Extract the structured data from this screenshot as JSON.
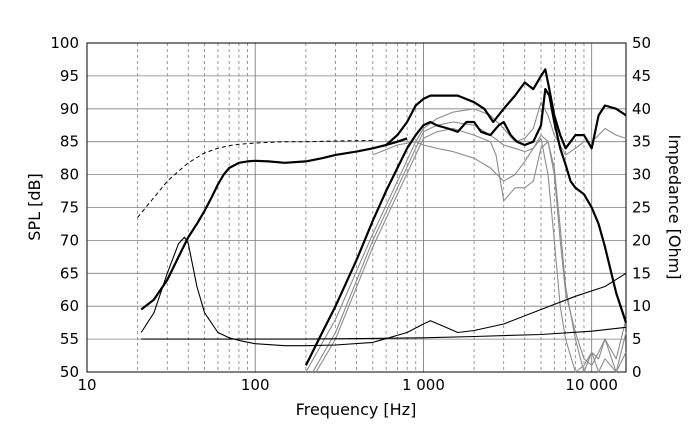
{
  "chart_data": {
    "type": "line",
    "title": "",
    "xlabel": "Frequency [Hz]",
    "ylabel": "SPL [dB]",
    "y2label": "Impedance [Ohm]",
    "xscale": "log",
    "xlim": [
      10,
      16000
    ],
    "ylim": [
      50,
      100
    ],
    "y2lim": [
      0,
      50
    ],
    "grid": true,
    "x_tick_labels": [
      "10",
      "100",
      "1 000",
      "10 000"
    ],
    "x_tick_values": [
      10,
      100,
      1000,
      10000
    ],
    "y_tick_labels": [
      "50",
      "55",
      "60",
      "65",
      "70",
      "75",
      "80",
      "85",
      "90",
      "95",
      "100"
    ],
    "y2_tick_labels": [
      "0",
      "5",
      "10",
      "15",
      "20",
      "25",
      "30",
      "35",
      "40",
      "45",
      "50"
    ],
    "colors": {
      "primary": "#000000",
      "secondary": "#8c8c8c",
      "grid": "#808080"
    },
    "series": [
      {
        "axis": "left",
        "style": "thick-black",
        "x": [
          21,
          25,
          30,
          35,
          40,
          45,
          50,
          55,
          60,
          65,
          70,
          80,
          90,
          100,
          120,
          150,
          200,
          250,
          300,
          400,
          500,
          600,
          700,
          800
        ],
        "y": [
          59.5,
          61,
          64,
          67.5,
          70.5,
          72.5,
          74.5,
          76.5,
          78.5,
          80,
          81,
          81.8,
          82,
          82.1,
          82,
          81.8,
          82,
          82.5,
          83,
          83.5,
          84,
          84.5,
          85,
          85.5
        ]
      },
      {
        "axis": "left",
        "style": "dashed-black",
        "x": [
          20,
          25,
          30,
          35,
          40,
          50,
          60,
          70,
          80,
          100,
          150,
          200,
          300,
          500
        ],
        "y": [
          73.5,
          76.5,
          79,
          80.5,
          81.8,
          83.3,
          84,
          84.4,
          84.6,
          84.8,
          85,
          85,
          85.1,
          85.2
        ]
      },
      {
        "axis": "right",
        "style": "thin-black",
        "x": [
          21,
          25,
          30,
          35,
          38,
          40,
          45,
          50,
          60,
          70,
          80,
          100,
          150,
          200,
          300,
          500,
          800,
          1000,
          1100,
          1300,
          1600,
          2000,
          3000,
          5000,
          8000,
          12000,
          16000
        ],
        "y": [
          6,
          9,
          15,
          19.5,
          20.5,
          19.5,
          13,
          9,
          6,
          5.2,
          4.8,
          4.3,
          4,
          4,
          4.1,
          4.5,
          6,
          7.3,
          7.8,
          7,
          6,
          6.3,
          7.3,
          9.5,
          11.5,
          13,
          15
        ]
      },
      {
        "axis": "right",
        "style": "thin-black",
        "x": [
          21,
          50,
          100,
          200,
          500,
          1000,
          2000,
          5000,
          10000,
          16000
        ],
        "y": [
          5,
          5,
          5,
          5,
          5.1,
          5.2,
          5.4,
          5.7,
          6.2,
          6.8
        ]
      },
      {
        "axis": "left",
        "style": "thick-black",
        "x": [
          200,
          250,
          300,
          400,
          500,
          600,
          700,
          800,
          900,
          1000,
          1100,
          1200,
          1400,
          1600,
          1800,
          2000,
          2200,
          2500,
          2800,
          3000,
          3300,
          3600,
          4000,
          4500,
          5000,
          5300,
          5600,
          6000,
          6500,
          7000,
          7500,
          8000,
          9000,
          10000,
          11000,
          12000,
          14000,
          16000
        ],
        "y": [
          51,
          56,
          60,
          67,
          73,
          77.5,
          81,
          84,
          86,
          87.5,
          88,
          87.5,
          87,
          86.5,
          88,
          88,
          86.5,
          86,
          87.5,
          88,
          86,
          85,
          84.5,
          85,
          87.5,
          93,
          92,
          88,
          84,
          81.5,
          79,
          78,
          77,
          75,
          72.5,
          69,
          62,
          57.5
        ]
      },
      {
        "axis": "left",
        "style": "thick-black",
        "x": [
          600,
          700,
          800,
          900,
          1000,
          1100,
          1300,
          1600,
          2000,
          2300,
          2600,
          3000,
          3500,
          4000,
          4500,
          5000,
          5300,
          5600,
          6000,
          6500,
          7000,
          7500,
          8000,
          9000,
          10000,
          11000,
          12000,
          14000,
          16000
        ],
        "y": [
          84.5,
          86,
          88,
          90.5,
          91.5,
          92,
          92,
          92,
          91,
          90,
          88,
          90,
          92,
          94,
          93,
          95,
          96,
          93,
          89,
          86,
          84,
          85,
          86,
          86,
          84,
          89,
          90.5,
          90,
          89
        ]
      },
      {
        "axis": "left",
        "style": "thin-gray",
        "x": [
          200,
          300,
          500,
          700,
          900,
          1000,
          1200,
          1500,
          2000,
          2500,
          3000,
          3500,
          4000,
          4500,
          5000,
          5500,
          6000,
          7000,
          8000,
          9000,
          10000,
          11000,
          12000,
          14000,
          16000
        ],
        "y": [
          50,
          58,
          71,
          79,
          85,
          87,
          88.5,
          89.5,
          90,
          89,
          87,
          85,
          85.5,
          87,
          91,
          89,
          86,
          83,
          84,
          85,
          85,
          86,
          87,
          86,
          85.5
        ]
      },
      {
        "axis": "left",
        "style": "thin-gray",
        "x": [
          220,
          300,
          500,
          700,
          900,
          1000,
          1200,
          1500,
          2000,
          2500,
          3000,
          3500,
          4000,
          4500,
          5000,
          5500,
          6000,
          6500,
          7000,
          8000,
          9000,
          10000,
          11000,
          12000,
          14000,
          16000
        ],
        "y": [
          50,
          56,
          70,
          78,
          84,
          86.5,
          87.5,
          88,
          87.5,
          86,
          84.5,
          84,
          83.5,
          84,
          86,
          85,
          80,
          70,
          62,
          56,
          52,
          51,
          53,
          55,
          52,
          58
        ]
      },
      {
        "axis": "left",
        "style": "thin-gray",
        "x": [
          230,
          300,
          500,
          700,
          900,
          1000,
          1200,
          1500,
          2000,
          2500,
          2700,
          3000,
          3500,
          4000,
          4500,
          5000,
          5500,
          6000,
          6500,
          7000,
          8000,
          9000,
          10000,
          11000,
          12000,
          14000,
          16000
        ],
        "y": [
          50,
          55,
          69,
          77,
          83,
          85.5,
          86.5,
          87,
          86,
          85,
          83,
          76,
          78,
          78,
          79,
          84,
          85,
          81,
          72,
          63,
          55,
          50,
          53,
          52,
          55,
          50,
          53
        ]
      },
      {
        "axis": "left",
        "style": "thin-gray",
        "x": [
          500,
          700,
          900,
          1000,
          1200,
          1500,
          2000,
          2500,
          3000,
          3500,
          4000,
          4500,
          5000,
          5500,
          6000,
          6500,
          7000,
          8000,
          9000,
          10000,
          11000,
          12000,
          14000,
          16000
        ],
        "y": [
          83,
          84.5,
          85,
          84.5,
          84,
          83.5,
          82.5,
          81,
          79,
          80,
          82,
          84,
          85.5,
          80,
          70,
          60,
          55,
          50,
          51,
          53,
          50,
          52,
          50,
          56
        ]
      }
    ]
  }
}
